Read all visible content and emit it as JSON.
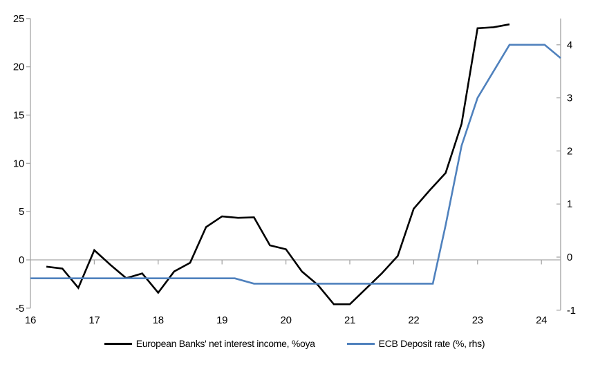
{
  "chart_data": {
    "type": "line",
    "title": "",
    "x_axis": {
      "min": 16,
      "max": 24.3,
      "tick_years": [
        16,
        17,
        18,
        19,
        20,
        21,
        22,
        23,
        24
      ],
      "tick_labels": [
        "16",
        "17",
        "18",
        "19",
        "20",
        "21",
        "22",
        "23",
        "24"
      ]
    },
    "y_axis_left": {
      "min": -5,
      "max": 25,
      "ticks": [
        25,
        20,
        15,
        10,
        5,
        0,
        -5
      ],
      "units": "%oya"
    },
    "y_axis_right": {
      "min": -1,
      "max": 4.45,
      "ticks": [
        4,
        3,
        2,
        1,
        0,
        -1
      ],
      "units": "%"
    },
    "grid": {
      "zero_line": true,
      "other_gridlines": false
    },
    "legend_position": "bottom",
    "series": [
      {
        "name": "European Banks' net interest income, %oya",
        "axis": "left",
        "color": "#000000",
        "points": [
          [
            16.25,
            -0.7
          ],
          [
            16.5,
            -0.9
          ],
          [
            16.75,
            -2.9
          ],
          [
            17.0,
            1.0
          ],
          [
            17.25,
            -0.5
          ],
          [
            17.5,
            -1.9
          ],
          [
            17.75,
            -1.4
          ],
          [
            18.0,
            -3.4
          ],
          [
            18.25,
            -1.2
          ],
          [
            18.5,
            -0.3
          ],
          [
            18.75,
            3.4
          ],
          [
            19.0,
            4.5
          ],
          [
            19.25,
            4.35
          ],
          [
            19.5,
            4.4
          ],
          [
            19.75,
            1.5
          ],
          [
            20.0,
            1.1
          ],
          [
            20.25,
            -1.2
          ],
          [
            20.5,
            -2.6
          ],
          [
            20.75,
            -4.6
          ],
          [
            21.0,
            -4.6
          ],
          [
            21.25,
            -3.0
          ],
          [
            21.5,
            -1.4
          ],
          [
            21.75,
            0.4
          ],
          [
            22.0,
            5.3
          ],
          [
            22.25,
            7.2
          ],
          [
            22.5,
            9.0
          ],
          [
            22.75,
            14.1
          ],
          [
            23.0,
            24.0
          ],
          [
            23.25,
            24.1
          ],
          [
            23.5,
            24.4
          ]
        ]
      },
      {
        "name": "ECB Deposit rate (%, rhs)",
        "axis": "right",
        "color": "#4F81BD",
        "points": [
          [
            16.0,
            -0.4
          ],
          [
            19.2,
            -0.4
          ],
          [
            19.5,
            -0.5
          ],
          [
            22.3,
            -0.5
          ],
          [
            22.5,
            0.6
          ],
          [
            22.75,
            2.1
          ],
          [
            23.0,
            3.0
          ],
          [
            23.25,
            3.5
          ],
          [
            23.5,
            4.0
          ],
          [
            24.05,
            4.0
          ],
          [
            24.3,
            3.75
          ]
        ]
      }
    ]
  },
  "colors": {
    "axis_gray": "#A6A6A6",
    "text": "#000000",
    "background": "#FFFFFF",
    "nii_line": "#000000",
    "ecb_line": "#4F81BD"
  }
}
